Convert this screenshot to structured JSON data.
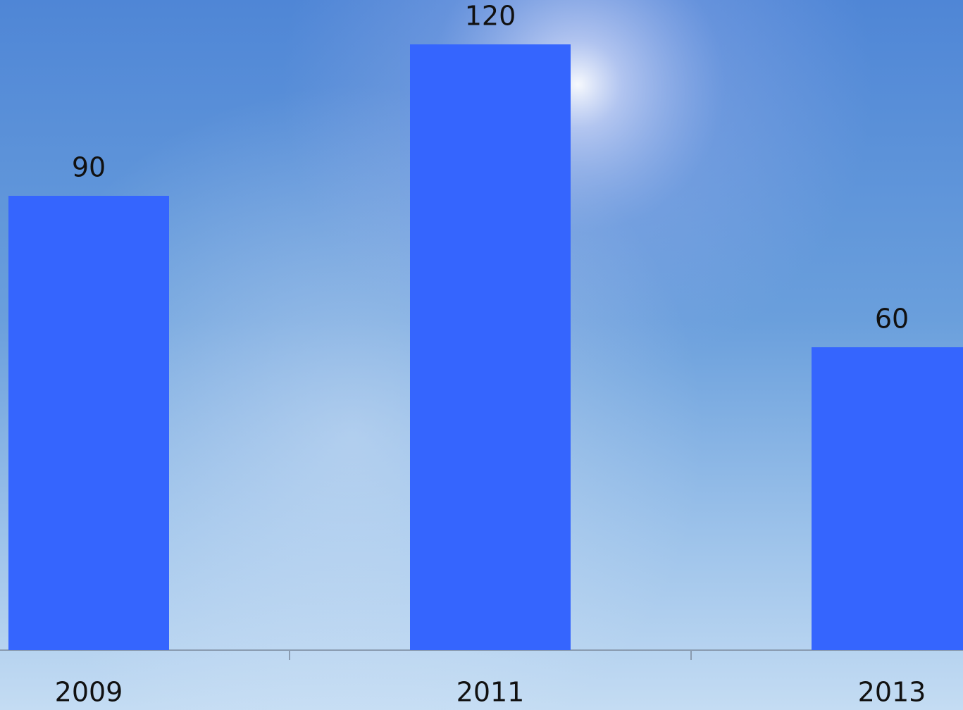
{
  "chart_data": {
    "type": "bar",
    "categories": [
      "2009",
      "2011",
      "2013"
    ],
    "values": [
      90,
      120,
      60
    ],
    "color": "#3565fe"
  }
}
